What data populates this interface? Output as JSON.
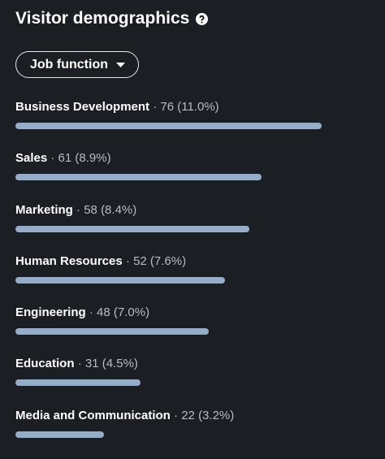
{
  "header": {
    "title": "Visitor demographics"
  },
  "filter": {
    "label": "Job function"
  },
  "separator": "·",
  "items": [
    {
      "name": "Business Development",
      "count": 76,
      "share": "(11.0%)"
    },
    {
      "name": "Sales",
      "count": 61,
      "share": "(8.9%)"
    },
    {
      "name": "Marketing",
      "count": 58,
      "share": "(8.4%)"
    },
    {
      "name": "Human Resources",
      "count": 52,
      "share": "(7.6%)"
    },
    {
      "name": "Engineering",
      "count": 48,
      "share": "(7.0%)"
    },
    {
      "name": "Education",
      "count": 31,
      "share": "(4.5%)"
    },
    {
      "name": "Media and Communication",
      "count": 22,
      "share": "(3.2%)"
    }
  ]
}
